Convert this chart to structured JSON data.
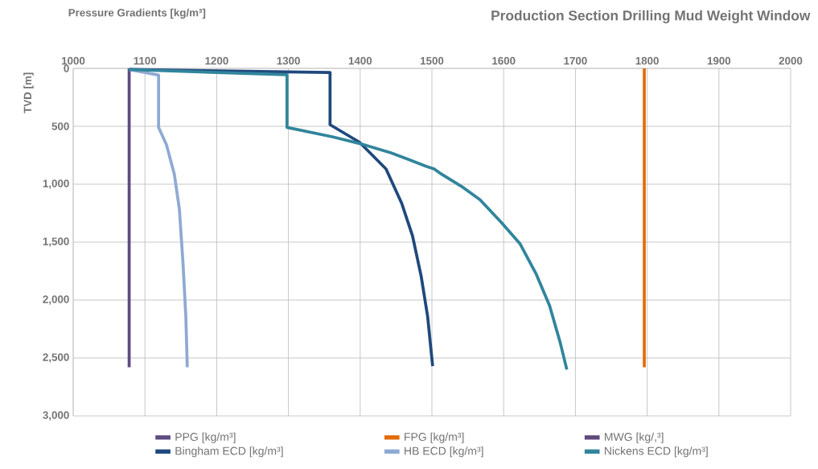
{
  "chart_data": {
    "type": "line",
    "title": "Production Section Drilling Mud Weight Window",
    "xlabel": "Pressure Gradients [kg/m³]",
    "ylabel": "TVD [m]",
    "xlim": [
      1000,
      2000
    ],
    "xticks": [
      1000,
      1100,
      1200,
      1300,
      1400,
      1500,
      1600,
      1700,
      1800,
      1900,
      2000
    ],
    "ylim": [
      3000,
      0
    ],
    "yticks": [
      0,
      {
        "value": 500,
        "label": "500"
      },
      {
        "value": 1000,
        "label": "1,000"
      },
      {
        "value": 1500,
        "label": "1,500"
      },
      {
        "value": 2000,
        "label": "2,000"
      },
      {
        "value": 2500,
        "label": "2,500"
      },
      {
        "value": 3000,
        "label": "3,000"
      }
    ],
    "grid": true,
    "legend": "bottom",
    "line_style": "solid",
    "series": [
      {
        "name": "PPG [kg/m³]",
        "color": "#5f4b82",
        "x": [
          1078,
          1078
        ],
        "values": [
          0,
          2580
        ]
      },
      {
        "name": "FPG [kg/m³]",
        "color": "#e46c0a",
        "x": [
          1796,
          1796
        ],
        "values": [
          0,
          2580
        ]
      },
      {
        "name": "MWG [kg/,³]",
        "color": "#604a7b",
        "x": [
          null,
          null
        ],
        "values": [
          null,
          null
        ]
      },
      {
        "name": "Bingham ECD [kg/m³]",
        "color": "#1f497d",
        "x": [
          1078,
          1358,
          1358,
          1399,
          1436,
          1458,
          1473,
          1485,
          1494,
          1501
        ],
        "values": [
          10,
          35,
          486,
          637,
          868,
          1167,
          1447,
          1794,
          2141,
          2570
        ]
      },
      {
        "name": "HB ECD [kg/m³]",
        "color": "#8eaad2",
        "x": [
          1078,
          1119,
          1119,
          1130,
          1141,
          1148,
          1153,
          1157,
          1159
        ],
        "values": [
          10,
          58,
          509,
          660,
          915,
          1215,
          1678,
          2141,
          2580
        ]
      },
      {
        "name": "Nickens ECD [kg/m³]",
        "color": "#31859c",
        "x": [
          1078,
          1298,
          1298,
          1361,
          1399,
          1443,
          1492,
          1503,
          1511,
          1541,
          1567,
          1597,
          1623,
          1645,
          1664,
          1679,
          1688
        ],
        "values": [
          10,
          55,
          509,
          590,
          648,
          729,
          845,
          868,
          903,
          1018,
          1134,
          1331,
          1516,
          1771,
          2049,
          2372,
          2600
        ]
      }
    ]
  }
}
